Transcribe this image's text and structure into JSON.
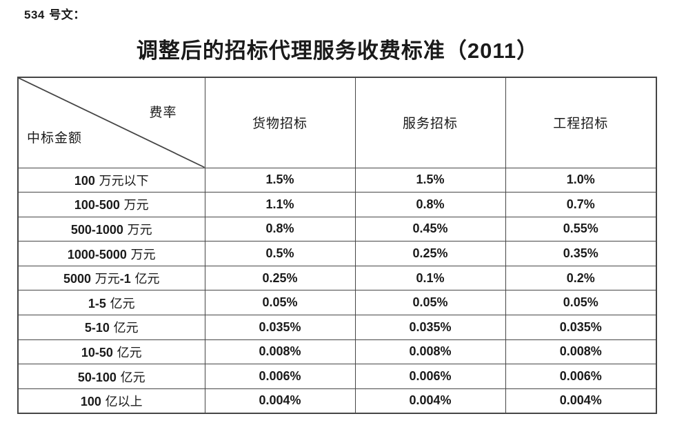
{
  "doc_ref": "534 号文：",
  "title": "调整后的招标代理服务收费标准（2011）",
  "table": {
    "corner": {
      "top_right": "费率",
      "bottom_left": "中标金额"
    },
    "columns": [
      "货物招标",
      "服务招标",
      "工程招标"
    ],
    "rows": [
      {
        "label": "100 万元以下",
        "values": [
          "1.5%",
          "1.5%",
          "1.0%"
        ]
      },
      {
        "label": "100-500 万元",
        "values": [
          "1.1%",
          "0.8%",
          "0.7%"
        ]
      },
      {
        "label": "500-1000 万元",
        "values": [
          "0.8%",
          "0.45%",
          "0.55%"
        ]
      },
      {
        "label": "1000-5000 万元",
        "values": [
          "0.5%",
          "0.25%",
          "0.35%"
        ]
      },
      {
        "label": "5000 万元-1 亿元",
        "values": [
          "0.25%",
          "0.1%",
          "0.2%"
        ]
      },
      {
        "label": "1-5 亿元",
        "values": [
          "0.05%",
          "0.05%",
          "0.05%"
        ]
      },
      {
        "label": "5-10 亿元",
        "values": [
          "0.035%",
          "0.035%",
          "0.035%"
        ]
      },
      {
        "label": "10-50 亿元",
        "values": [
          "0.008%",
          "0.008%",
          "0.008%"
        ]
      },
      {
        "label": "50-100 亿元",
        "values": [
          "0.006%",
          "0.006%",
          "0.006%"
        ]
      },
      {
        "label": "100 亿以上",
        "values": [
          "0.004%",
          "0.004%",
          "0.004%"
        ]
      }
    ]
  },
  "colors": {
    "text": "#1a1a1a",
    "border": "#454545",
    "background": "#ffffff"
  }
}
